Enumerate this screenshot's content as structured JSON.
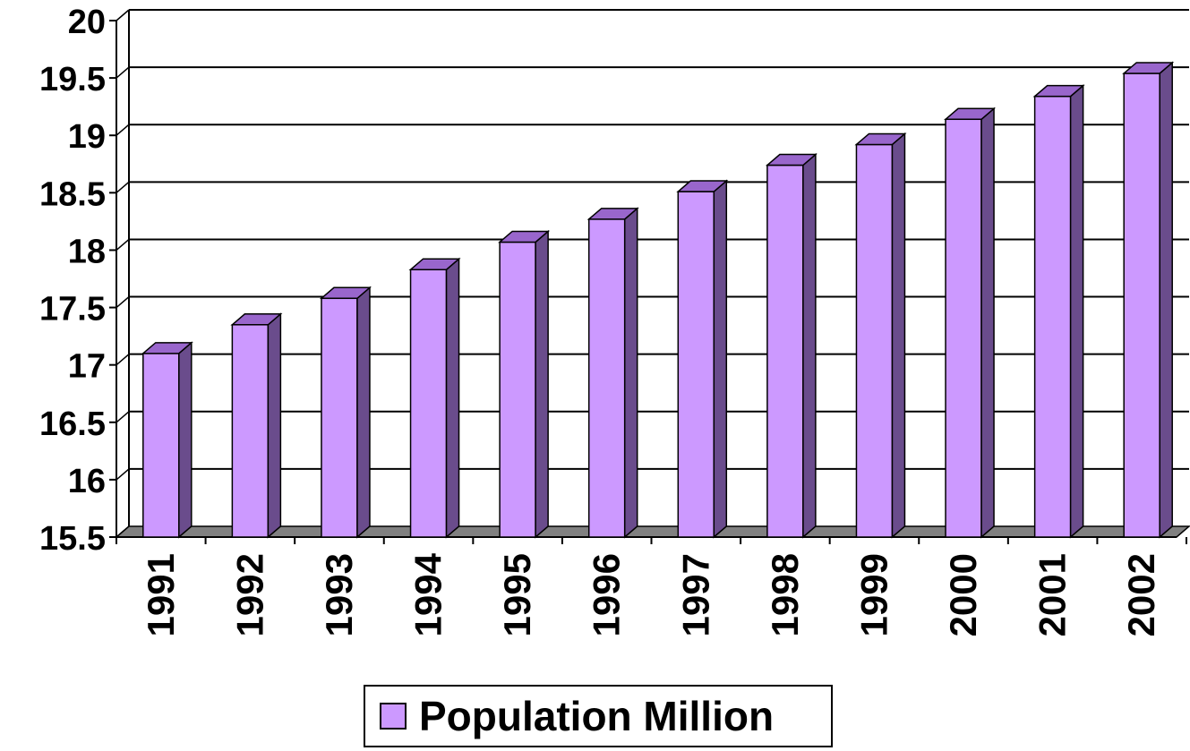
{
  "chart_data": {
    "type": "bar",
    "categories": [
      "1991",
      "1992",
      "1993",
      "1994",
      "1995",
      "1996",
      "1997",
      "1998",
      "1999",
      "2000",
      "2001",
      "2002"
    ],
    "series": [
      {
        "name": "Population Million",
        "values": [
          17.1,
          17.35,
          17.58,
          17.83,
          18.07,
          18.27,
          18.51,
          18.74,
          18.92,
          19.14,
          19.34,
          19.54
        ]
      }
    ],
    "ylim": [
      15.5,
      20
    ],
    "yticks": [
      "15.5",
      "16",
      "16.5",
      "17",
      "17.5",
      "18",
      "18.5",
      "19",
      "19.5",
      "20"
    ],
    "grid": true,
    "legend_position": "bottom",
    "colors": {
      "bar_front": "#cc99ff",
      "bar_side": "#6a4c8c",
      "bar_top": "#9966cc",
      "floor": "#808080"
    }
  }
}
